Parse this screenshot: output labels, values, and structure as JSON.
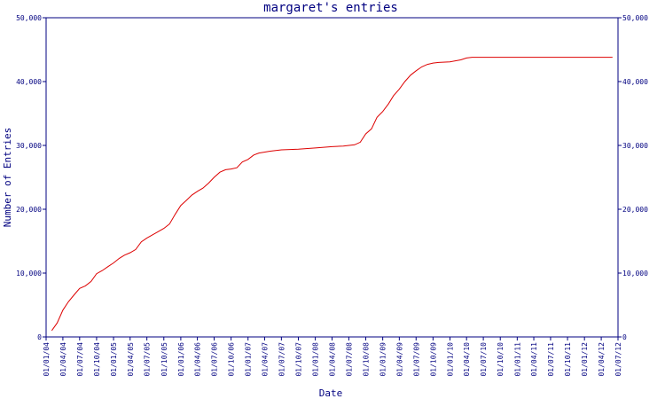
{
  "chart_data": {
    "type": "line",
    "title": "margaret's entries",
    "xlabel": "Date",
    "ylabel": "Number of Entries",
    "ylim": [
      0,
      50000
    ],
    "y_ticks": [
      0,
      10000,
      20000,
      30000,
      40000,
      50000
    ],
    "y_tick_labels": [
      "0",
      "10,000",
      "20,000",
      "30,000",
      "40,000",
      "50,000"
    ],
    "x_ticks": [
      "01/01/04",
      "01/04/04",
      "01/07/04",
      "01/10/04",
      "01/01/05",
      "01/04/05",
      "01/07/05",
      "01/10/05",
      "01/01/06",
      "01/04/06",
      "01/07/06",
      "01/10/06",
      "01/01/07",
      "01/04/07",
      "01/07/07",
      "01/10/07",
      "01/01/08",
      "01/04/08",
      "01/07/08",
      "01/10/08",
      "01/01/09",
      "01/04/09",
      "01/07/09",
      "01/10/09",
      "01/01/10",
      "01/04/10",
      "01/07/10",
      "01/10/10",
      "01/01/11",
      "01/04/11",
      "01/07/11",
      "01/10/11",
      "01/01/12",
      "01/04/12",
      "01/07/12"
    ],
    "grid": false,
    "colors": {
      "axis": "#000080",
      "series": "#dd0000"
    },
    "series": [
      {
        "points": [
          [
            "2004-02-01",
            1000
          ],
          [
            "2004-03-01",
            2200
          ],
          [
            "2004-04-01",
            4200
          ],
          [
            "2004-05-01",
            5500
          ],
          [
            "2004-06-01",
            6600
          ],
          [
            "2004-07-01",
            7600
          ],
          [
            "2004-08-01",
            8000
          ],
          [
            "2004-09-01",
            8700
          ],
          [
            "2004-10-01",
            9900
          ],
          [
            "2004-11-01",
            10400
          ],
          [
            "2004-12-01",
            11000
          ],
          [
            "2005-01-01",
            11600
          ],
          [
            "2005-02-01",
            12300
          ],
          [
            "2005-03-01",
            12800
          ],
          [
            "2005-04-01",
            13200
          ],
          [
            "2005-05-01",
            13700
          ],
          [
            "2005-06-01",
            14900
          ],
          [
            "2005-07-01",
            15500
          ],
          [
            "2005-08-01",
            16000
          ],
          [
            "2005-09-01",
            16500
          ],
          [
            "2005-10-01",
            17000
          ],
          [
            "2005-11-01",
            17700
          ],
          [
            "2005-12-01",
            19200
          ],
          [
            "2006-01-01",
            20600
          ],
          [
            "2006-02-01",
            21400
          ],
          [
            "2006-03-01",
            22200
          ],
          [
            "2006-04-01",
            22800
          ],
          [
            "2006-05-01",
            23300
          ],
          [
            "2006-06-01",
            24100
          ],
          [
            "2006-07-01",
            25000
          ],
          [
            "2006-08-01",
            25800
          ],
          [
            "2006-09-01",
            26200
          ],
          [
            "2006-10-01",
            26300
          ],
          [
            "2006-11-01",
            26500
          ],
          [
            "2006-12-01",
            27400
          ],
          [
            "2007-01-01",
            27800
          ],
          [
            "2007-02-01",
            28500
          ],
          [
            "2007-03-01",
            28800
          ],
          [
            "2007-05-01",
            29100
          ],
          [
            "2007-07-01",
            29300
          ],
          [
            "2007-10-01",
            29400
          ],
          [
            "2008-01-01",
            29600
          ],
          [
            "2008-04-01",
            29800
          ],
          [
            "2008-06-01",
            29900
          ],
          [
            "2008-08-01",
            30100
          ],
          [
            "2008-09-01",
            30500
          ],
          [
            "2008-10-01",
            31800
          ],
          [
            "2008-11-01",
            32600
          ],
          [
            "2008-12-01",
            34400
          ],
          [
            "2009-01-01",
            35300
          ],
          [
            "2009-02-01",
            36500
          ],
          [
            "2009-03-01",
            37800
          ],
          [
            "2009-04-01",
            38800
          ],
          [
            "2009-05-01",
            40000
          ],
          [
            "2009-06-01",
            41000
          ],
          [
            "2009-07-01",
            41700
          ],
          [
            "2009-08-01",
            42300
          ],
          [
            "2009-09-01",
            42700
          ],
          [
            "2009-10-01",
            42900
          ],
          [
            "2009-11-01",
            43000
          ],
          [
            "2010-01-01",
            43100
          ],
          [
            "2010-03-01",
            43400
          ],
          [
            "2010-04-01",
            43700
          ],
          [
            "2010-05-01",
            43800
          ],
          [
            "2011-01-01",
            43800
          ],
          [
            "2012-01-01",
            43800
          ],
          [
            "2012-06-01",
            43800
          ]
        ]
      }
    ]
  }
}
